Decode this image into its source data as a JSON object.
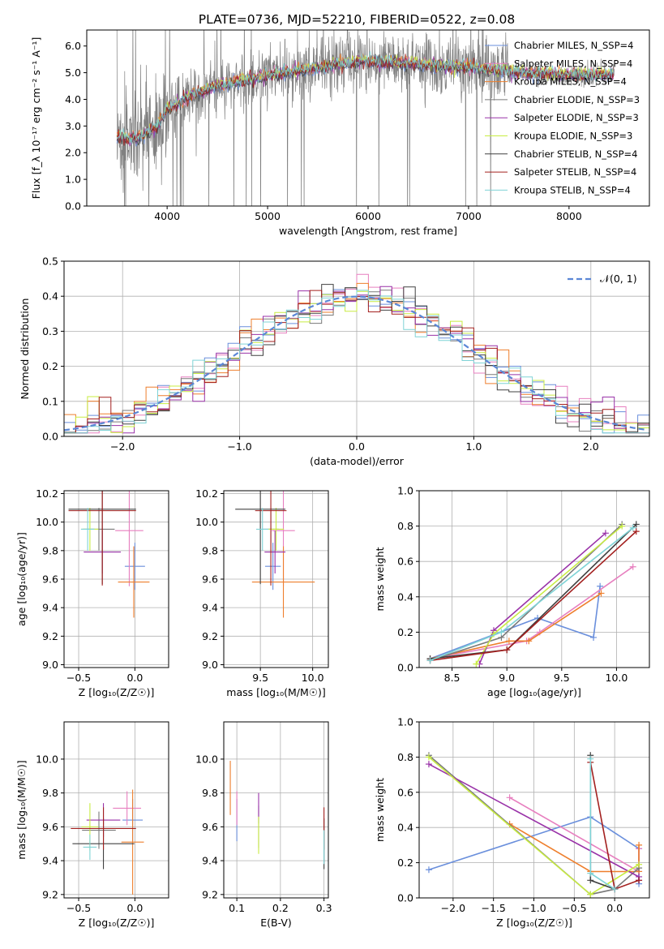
{
  "title": "PLATE=0736, MJD=52210, FIBERID=0522, z=0.08",
  "colors": {
    "Chabrier MILES": "#6a8fdc",
    "Salpeter MILES": "#e77fbf",
    "Kroupa MILES": "#ee7f2d",
    "Chabrier ELODIE": "#7a7a7a",
    "Salpeter ELODIE": "#9932a8",
    "Kroupa ELODIE": "#c8ec42",
    "Chabrier STELIB": "#404040",
    "Salpeter STELIB": "#a3201f",
    "Kroupa STELIB": "#7fd3d6",
    "gaussian": "#5b87d6",
    "data": "#808080",
    "green": "#4e9a55"
  },
  "chart_data": [
    {
      "type": "line",
      "id": "spectrum",
      "xlabel": "wavelength [Angstrom, rest frame]",
      "ylabel": "Flux [f_λ 10⁻¹⁷ erg cm⁻² s⁻¹ A⁻¹]",
      "xlim": [
        3200,
        8800
      ],
      "ylim": [
        0,
        6.6
      ],
      "xticks": [
        4000,
        5000,
        6000,
        7000,
        8000
      ],
      "yticks": [
        0,
        1,
        2,
        3,
        4,
        5,
        6
      ],
      "legend": [
        "Chabrier MILES, N_SSP=4",
        "Salpeter MILES, N_SSP=4",
        "Kroupa MILES, N_SSP=4",
        "Chabrier ELODIE, N_SSP=3",
        "Salpeter ELODIE, N_SSP=3",
        "Kroupa ELODIE, N_SSP=3",
        "Chabrier STELIB, N_SSP=4",
        "Salpeter STELIB, N_SSP=4",
        "Kroupa STELIB, N_SSP=4"
      ],
      "legend_location": "right",
      "spectrum_range": [
        3500,
        8450
      ],
      "continuum_knots": [
        [
          3500,
          2.6
        ],
        [
          3700,
          2.5
        ],
        [
          3900,
          3.0
        ],
        [
          4000,
          3.6
        ],
        [
          4200,
          4.1
        ],
        [
          4500,
          4.5
        ],
        [
          5000,
          4.9
        ],
        [
          5500,
          5.2
        ],
        [
          6000,
          5.45
        ],
        [
          6500,
          5.3
        ],
        [
          7000,
          5.2
        ],
        [
          7500,
          5.0
        ],
        [
          8000,
          4.9
        ],
        [
          8450,
          4.95
        ]
      ],
      "grid": false
    },
    {
      "type": "line",
      "id": "residuals",
      "xlabel": "(data-model)/error",
      "ylabel": "Normed distribution",
      "xlim": [
        -2.5,
        2.5
      ],
      "ylim": [
        0,
        0.5
      ],
      "xticks": [
        -2,
        -1,
        0,
        1,
        2
      ],
      "yticks": [
        0.0,
        0.1,
        0.2,
        0.3,
        0.4,
        0.5
      ],
      "legend": [
        "𝒩(0, 1)"
      ],
      "legend_location": "top-right",
      "bins": 50,
      "grid": true
    },
    {
      "type": "scatter",
      "id": "age_vs_Z",
      "xlabel": "Z [log₁₀(Z/Z☉)]",
      "ylabel": "age  [log₁₀(age/yr)]",
      "xlim": [
        -0.63,
        0.3
      ],
      "ylim": [
        8.98,
        10.22
      ],
      "xticks": [
        -0.5,
        0.0
      ],
      "yticks": [
        9.0,
        9.2,
        9.4,
        9.6,
        9.8,
        10.0,
        10.2
      ],
      "points": [
        {
          "model": "Chabrier MILES",
          "x": 0.0,
          "y": 9.69,
          "xerr": 0.18,
          "yerr": 0.33
        },
        {
          "model": "Salpeter MILES",
          "x": -0.05,
          "y": 9.94,
          "xerr": 0.25,
          "yerr": 0.78
        },
        {
          "model": "Kroupa MILES",
          "x": -0.01,
          "y": 9.58,
          "xerr": 0.28,
          "yerr": 0.5
        },
        {
          "model": "Chabrier ELODIE",
          "x": -0.32,
          "y": 9.95,
          "xerr": 0.28,
          "yerr": 0.3
        },
        {
          "model": "Salpeter ELODIE",
          "x": -0.29,
          "y": 9.79,
          "xerr": 0.33,
          "yerr": 0.3
        },
        {
          "model": "Kroupa ELODIE",
          "x": -0.4,
          "y": 9.95,
          "xerr": 0.15,
          "yerr": 0.3
        },
        {
          "model": "Chabrier STELIB",
          "x": -0.29,
          "y": 10.09,
          "xerr": 0.6,
          "yerr": 1.05
        },
        {
          "model": "Salpeter STELIB",
          "x": -0.29,
          "y": 10.08,
          "xerr": 0.6,
          "yerr": 1.05
        },
        {
          "model": "Kroupa STELIB",
          "x": -0.42,
          "y": 9.95,
          "xerr": 0.12,
          "yerr": 0.3
        }
      ],
      "grid": true
    },
    {
      "type": "scatter",
      "id": "age_vs_mass",
      "xlabel": "mass [log₁₀(M/M☉)]",
      "ylabel": "",
      "xlim": [
        9.15,
        10.15
      ],
      "ylim": [
        8.98,
        10.22
      ],
      "xticks": [
        9.5,
        10.0
      ],
      "yticks": [
        9.0,
        9.2,
        9.4,
        9.6,
        9.8,
        10.0,
        10.2
      ],
      "points": [
        {
          "model": "Chabrier MILES",
          "x": 9.62,
          "y": 9.69,
          "xerr": 0.15,
          "yerr": 0.33
        },
        {
          "model": "Salpeter MILES",
          "x": 9.72,
          "y": 9.94,
          "xerr": 0.22,
          "yerr": 0.78
        },
        {
          "model": "Kroupa MILES",
          "x": 9.72,
          "y": 9.58,
          "xerr": 0.6,
          "yerr": 0.5
        },
        {
          "model": "Chabrier ELODIE",
          "x": 9.6,
          "y": 9.95,
          "xerr": 0.15,
          "yerr": 0.3
        },
        {
          "model": "Salpeter ELODIE",
          "x": 9.64,
          "y": 9.79,
          "xerr": 0.2,
          "yerr": 0.3
        },
        {
          "model": "Kroupa ELODIE",
          "x": 9.65,
          "y": 9.95,
          "xerr": 0.15,
          "yerr": 0.3
        },
        {
          "model": "Chabrier STELIB",
          "x": 9.5,
          "y": 10.09,
          "xerr": 0.48,
          "yerr": 1.05
        },
        {
          "model": "Salpeter STELIB",
          "x": 9.6,
          "y": 10.08,
          "xerr": 0.3,
          "yerr": 1.05
        },
        {
          "model": "Kroupa STELIB",
          "x": 9.52,
          "y": 9.95,
          "xerr": 0.12,
          "yerr": 0.3
        }
      ],
      "grid": true
    },
    {
      "type": "line",
      "id": "mass_weight_vs_age",
      "xlabel": "age  [log₁₀(age/yr)]",
      "ylabel": "mass weight",
      "xlim": [
        8.2,
        10.3
      ],
      "ylim": [
        0,
        1.0
      ],
      "xticks": [
        8.5,
        9.0,
        9.5,
        10.0
      ],
      "yticks": [
        0.0,
        0.2,
        0.4,
        0.6,
        0.8,
        1.0
      ],
      "series": [
        {
          "model": "Chabrier MILES",
          "x": [
            8.3,
            9.28,
            9.79,
            9.85
          ],
          "y": [
            0.05,
            0.28,
            0.17,
            0.46
          ]
        },
        {
          "model": "Salpeter MILES",
          "x": [
            8.3,
            9.18,
            9.3,
            10.15
          ],
          "y": [
            0.05,
            0.15,
            0.2,
            0.57
          ]
        },
        {
          "model": "Kroupa MILES",
          "x": [
            8.3,
            9.02,
            9.2,
            9.86
          ],
          "y": [
            0.05,
            0.15,
            0.15,
            0.42
          ]
        },
        {
          "model": "Chabrier ELODIE",
          "x": [
            8.3,
            8.95,
            10.05
          ],
          "y": [
            0.04,
            0.17,
            0.81
          ]
        },
        {
          "model": "Salpeter ELODIE",
          "x": [
            8.75,
            8.88,
            9.9
          ],
          "y": [
            0.02,
            0.21,
            0.76
          ]
        },
        {
          "model": "Kroupa ELODIE",
          "x": [
            8.72,
            8.88,
            10.05
          ],
          "y": [
            0.02,
            0.19,
            0.8
          ]
        },
        {
          "model": "Chabrier STELIB",
          "x": [
            8.3,
            9.0,
            10.18
          ],
          "y": [
            0.05,
            0.1,
            0.81
          ]
        },
        {
          "model": "Salpeter STELIB",
          "x": [
            8.3,
            9.0,
            10.18
          ],
          "y": [
            0.04,
            0.1,
            0.77
          ]
        },
        {
          "model": "Kroupa STELIB",
          "x": [
            8.3,
            8.95,
            10.15
          ],
          "y": [
            0.04,
            0.2,
            0.79
          ]
        }
      ],
      "grid": true
    },
    {
      "type": "scatter",
      "id": "mass_vs_Z",
      "xlabel": "Z [log₁₀(Z/Z☉)]",
      "ylabel": "mass [log₁₀(M/M☉)]",
      "xlim": [
        -0.63,
        0.3
      ],
      "ylim": [
        9.18,
        10.22
      ],
      "xticks": [
        -0.5,
        0.0
      ],
      "yticks": [
        9.2,
        9.4,
        9.6,
        9.8,
        10.0
      ],
      "points": [
        {
          "model": "Chabrier MILES",
          "x": -0.02,
          "y": 9.64,
          "xerr": 0.18,
          "yerr": 0.25
        },
        {
          "model": "Salpeter MILES",
          "x": -0.07,
          "y": 9.71,
          "xerr": 0.25,
          "yerr": 0.2
        },
        {
          "model": "Kroupa MILES",
          "x": -0.02,
          "y": 9.51,
          "xerr": 0.2,
          "yerr": 0.62
        },
        {
          "model": "Chabrier ELODIE",
          "x": -0.32,
          "y": 9.58,
          "xerr": 0.3,
          "yerr": 0.22
        },
        {
          "model": "Salpeter ELODIE",
          "x": -0.28,
          "y": 9.64,
          "xerr": 0.3,
          "yerr": 0.2
        },
        {
          "model": "Kroupa ELODIE",
          "x": -0.4,
          "y": 9.6,
          "xerr": 0.15,
          "yerr": 0.28
        },
        {
          "model": "Chabrier STELIB",
          "x": -0.28,
          "y": 9.5,
          "xerr": 0.55,
          "yerr": 0.3
        },
        {
          "model": "Salpeter STELIB",
          "x": -0.28,
          "y": 9.59,
          "xerr": 0.58,
          "yerr": 0.25
        },
        {
          "model": "Kroupa STELIB",
          "x": -0.4,
          "y": 9.48,
          "xerr": 0.12,
          "yerr": 0.15
        }
      ],
      "grid": true
    },
    {
      "type": "scatter",
      "id": "mass_vs_ebv",
      "xlabel": "E(B-V)",
      "ylabel": "",
      "xlim": [
        0.07,
        0.31
      ],
      "ylim": [
        9.18,
        10.22
      ],
      "xticks": [
        0.1,
        0.2,
        0.3
      ],
      "yticks": [
        9.2,
        9.4,
        9.6,
        9.8,
        10.0
      ],
      "points": [
        {
          "model": "Chabrier MILES",
          "x": 0.1,
          "y": 9.64,
          "yerr": 0.25
        },
        {
          "model": "Salpeter MILES",
          "x": 0.1,
          "y": 9.71,
          "yerr": 0.2
        },
        {
          "model": "Kroupa MILES",
          "x": 0.085,
          "y": 9.83,
          "yerr": 0.32
        },
        {
          "model": "Chabrier ELODIE",
          "x": 0.15,
          "y": 9.6,
          "yerr": 0.25
        },
        {
          "model": "Salpeter ELODIE",
          "x": 0.15,
          "y": 9.71,
          "yerr": 0.18
        },
        {
          "model": "Kroupa ELODIE",
          "x": 0.15,
          "y": 9.55,
          "yerr": 0.22
        },
        {
          "model": "Chabrier STELIB",
          "x": 0.3,
          "y": 9.5,
          "yerr": 0.3
        },
        {
          "model": "Salpeter STELIB",
          "x": 0.3,
          "y": 9.59,
          "yerr": 0.25
        },
        {
          "model": "Kroupa STELIB",
          "x": 0.3,
          "y": 9.48,
          "yerr": 0.2
        }
      ],
      "grid": true
    },
    {
      "type": "line",
      "id": "mass_weight_vs_Z",
      "xlabel": "Z [log₁₀(Z/Z☉)]",
      "ylabel": "mass weight",
      "xlim": [
        -2.42,
        0.43
      ],
      "ylim": [
        0,
        1.0
      ],
      "xticks": [
        -2.0,
        -1.5,
        -1.0,
        -0.5,
        0.0
      ],
      "yticks": [
        0.0,
        0.2,
        0.4,
        0.6,
        0.8,
        1.0
      ],
      "series": [
        {
          "model": "Chabrier MILES",
          "x": [
            -2.3,
            -0.3,
            0.3,
            0.3
          ],
          "y": [
            0.16,
            0.46,
            0.28,
            0.08
          ]
        },
        {
          "model": "Salpeter MILES",
          "x": [
            -1.3,
            0.3,
            0.3
          ],
          "y": [
            0.57,
            0.15,
            0.28
          ]
        },
        {
          "model": "Kroupa MILES",
          "x": [
            -1.3,
            -0.3,
            0.3,
            0.3
          ],
          "y": [
            0.42,
            0.15,
            0.15,
            0.3
          ]
        },
        {
          "model": "Chabrier ELODIE",
          "x": [
            -2.3,
            -0.3,
            0.0,
            0.3
          ],
          "y": [
            0.81,
            0.02,
            0.05,
            0.17
          ]
        },
        {
          "model": "Salpeter ELODIE",
          "x": [
            -2.3,
            0.3,
            0.3
          ],
          "y": [
            0.76,
            0.12,
            0.1
          ]
        },
        {
          "model": "Kroupa ELODIE",
          "x": [
            -2.3,
            -0.3,
            0.3
          ],
          "y": [
            0.8,
            0.02,
            0.19
          ]
        },
        {
          "model": "Chabrier STELIB",
          "x": [
            -0.3,
            -0.3,
            0.0
          ],
          "y": [
            0.81,
            0.1,
            0.05
          ]
        },
        {
          "model": "Salpeter STELIB",
          "x": [
            -0.3,
            0.0,
            0.3
          ],
          "y": [
            0.77,
            0.05,
            0.1
          ]
        },
        {
          "model": "Kroupa STELIB",
          "x": [
            -0.3,
            -0.3,
            0.0
          ],
          "y": [
            0.79,
            0.14,
            0.05
          ]
        }
      ],
      "grid": true
    }
  ]
}
